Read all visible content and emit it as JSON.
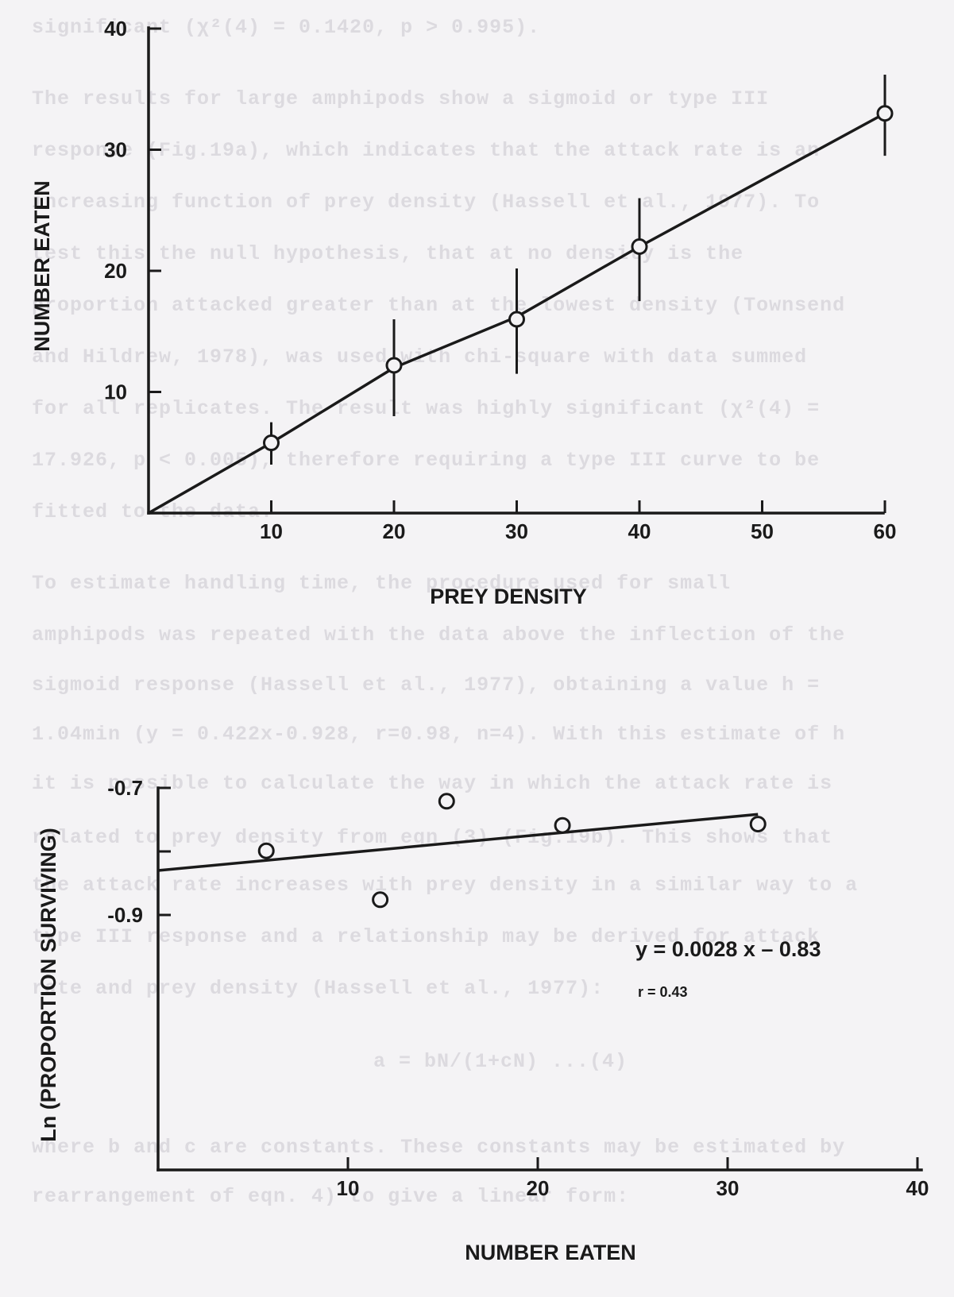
{
  "background_text": [
    "significant (χ²(4) = 0.1420, p > 0.995).",
    "The results for large amphipods show a sigmoid or type III",
    "response (Fig.19a), which indicates that the attack rate is an",
    "increasing function of prey density (Hassell et al., 1977). To",
    "test this the null hypothesis, that at no density is the",
    "proportion attacked greater than at the lowest density (Townsend",
    "and Hildrew, 1978), was used with chi-square with data summed",
    "for all replicates. The result was highly significant (χ²(4) =",
    "17.926, p < 0.005), therefore requiring a type III curve to be",
    "fitted to the data.",
    "To estimate handling time, the procedure used for small",
    "amphipods was repeated with the data above the inflection of the",
    "sigmoid response (Hassell et al., 1977), obtaining a value h =",
    "1.04min (y = 0.422x-0.928, r=0.98, n=4). With this estimate of h",
    "it is possible to calculate the way in which the attack rate is",
    "related to prey density from eqn (3) (Fig.19b). This shows that",
    "the attack rate increases with prey density in a similar way to a",
    "type III response and a relationship may be derived for attack",
    "rate and prey density (Hassell et al., 1977):",
    "a = bN/(1+cN)        ...(4)",
    "where b and c are constants. These constants may be estimated by",
    "rearrangement of eqn. 4) to give a linear form:"
  ],
  "chart_data": [
    {
      "type": "line",
      "title": "",
      "xlabel": "PREY DENSITY",
      "ylabel": "NUMBER EATEN",
      "x_ticks": [
        "10",
        "20",
        "30",
        "40",
        "50",
        "60"
      ],
      "y_ticks": [
        "10",
        "20",
        "30",
        "40"
      ],
      "xlim": [
        0,
        60
      ],
      "ylim": [
        0,
        40
      ],
      "grid": false,
      "line": [
        [
          0,
          0
        ],
        [
          10,
          5.8
        ],
        [
          20,
          12
        ],
        [
          30,
          16.2
        ],
        [
          40,
          22
        ],
        [
          60,
          33
        ]
      ],
      "points": [
        {
          "x": 10,
          "y": 5.8,
          "yerr_low": 4,
          "yerr_high": 7.5
        },
        {
          "x": 20,
          "y": 12.2,
          "yerr_low": 8,
          "yerr_high": 16
        },
        {
          "x": 30,
          "y": 16,
          "yerr_low": 11.5,
          "yerr_high": 20.2
        },
        {
          "x": 40,
          "y": 22,
          "yerr_low": 17.5,
          "yerr_high": 26
        },
        {
          "x": 60,
          "y": 33,
          "yerr_low": 29.5,
          "yerr_high": 36.2
        }
      ]
    },
    {
      "type": "scatter",
      "title": "",
      "xlabel": "NUMBER EATEN",
      "ylabel": "Ln (PROPORTION SURVIVING)",
      "x_ticks": [
        "10",
        "20",
        "30",
        "40"
      ],
      "y_ticks": [
        "-0.7",
        "-0.9"
      ],
      "xlim": [
        0,
        40
      ],
      "ylim": [
        -1.0,
        -0.7
      ],
      "grid": false,
      "points": [
        {
          "x": 5.7,
          "y": -0.799
        },
        {
          "x": 11.7,
          "y": -0.876
        },
        {
          "x": 15.2,
          "y": -0.721
        },
        {
          "x": 21.3,
          "y": -0.759
        },
        {
          "x": 31.6,
          "y": -0.757
        }
      ],
      "regression": {
        "slope": 0.0028,
        "intercept": -0.83,
        "x_range": [
          0,
          31.6
        ],
        "equation": "y = 0.0028 x – 0.83",
        "r_label": "r = 0.43"
      }
    }
  ]
}
